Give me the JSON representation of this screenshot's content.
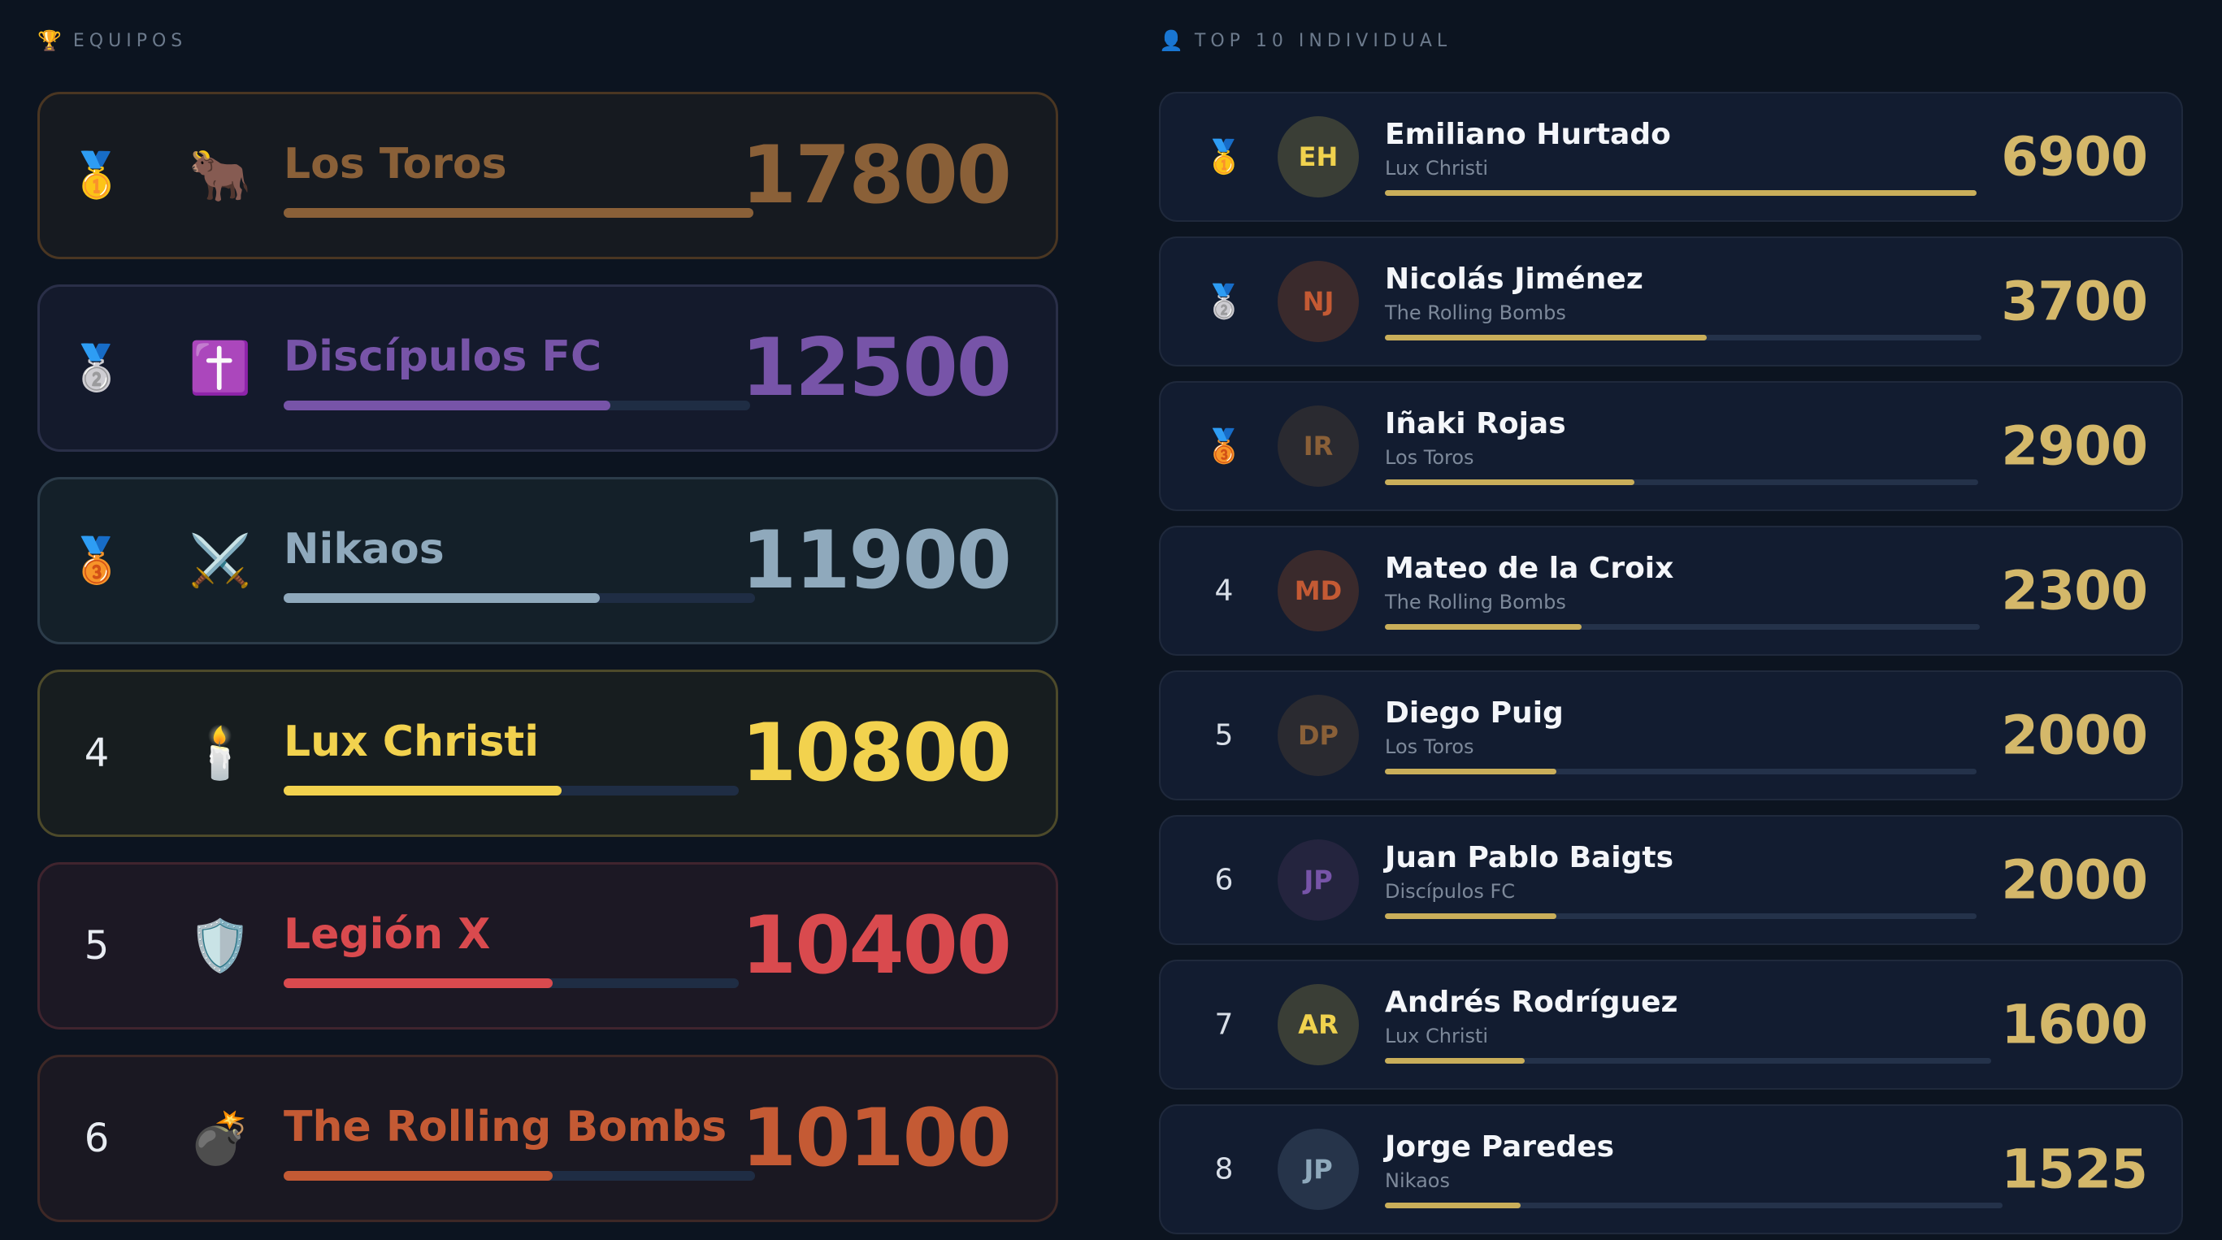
{
  "teams_section": {
    "icon": "trophy-icon",
    "icon_glyph": "🏆",
    "title": "EQUIPOS"
  },
  "top_section": {
    "icon": "person-icon",
    "icon_glyph": "👤",
    "title": "TOP 10 INDIVIDUAL"
  },
  "teams": [
    {
      "rank": "1",
      "medal": "🥇",
      "medal_icon": "gold-medal-icon",
      "emoji": "🐂",
      "emoji_icon": "ox-icon",
      "name": "Los Toros",
      "score": "17800",
      "progress": 1.0,
      "color": "#8a6038",
      "bg": "#161a20",
      "border": "#4a3622"
    },
    {
      "rank": "2",
      "medal": "🥈",
      "medal_icon": "silver-medal-icon",
      "emoji": "✝️",
      "emoji_icon": "cross-icon",
      "name": "Discípulos FC",
      "score": "12500",
      "progress": 0.7,
      "color": "#7754a8",
      "bg": "#141a2c",
      "border": "#2a2f48"
    },
    {
      "rank": "3",
      "medal": "🥉",
      "medal_icon": "bronze-medal-icon",
      "emoji": "⚔️",
      "emoji_icon": "crossed-swords-icon",
      "name": "Nikaos",
      "score": "11900",
      "progress": 0.67,
      "color": "#8fa9bc",
      "bg": "#142029",
      "border": "#2c3c4a"
    },
    {
      "rank": "4",
      "medal": "",
      "medal_icon": "",
      "emoji": "🕯️",
      "emoji_icon": "candle-icon",
      "name": "Lux Christi",
      "score": "10800",
      "progress": 0.61,
      "color": "#f2d24e",
      "bg": "#171d1f",
      "border": "#4d4a2a"
    },
    {
      "rank": "5",
      "medal": "",
      "medal_icon": "",
      "emoji": "🛡️",
      "emoji_icon": "shield-icon",
      "name": "Legión X",
      "score": "10400",
      "progress": 0.59,
      "color": "#d94a4e",
      "bg": "#1c1824",
      "border": "#40242e"
    },
    {
      "rank": "6",
      "medal": "",
      "medal_icon": "",
      "emoji": "💣",
      "emoji_icon": "bomb-icon",
      "name": "The Rolling Bombs",
      "score": "10100",
      "progress": 0.57,
      "color": "#c45a34",
      "bg": "#1a1822",
      "border": "#3e2826"
    }
  ],
  "players": [
    {
      "rank": "1",
      "medal": "🥇",
      "medal_icon": "gold-medal-icon",
      "initials": "EH",
      "name": "Emiliano Hurtado",
      "team": "Lux Christi",
      "score": "6900",
      "progress": 1.0,
      "avatar_bg": "#3a3e36",
      "avatar_fg": "#f0d24e"
    },
    {
      "rank": "2",
      "medal": "🥈",
      "medal_icon": "silver-medal-icon",
      "initials": "NJ",
      "name": "Nicolás Jiménez",
      "team": "The Rolling Bombs",
      "score": "3700",
      "progress": 0.54,
      "avatar_bg": "#3a2a2c",
      "avatar_fg": "#c45a34"
    },
    {
      "rank": "3",
      "medal": "🥉",
      "medal_icon": "bronze-medal-icon",
      "initials": "IR",
      "name": "Iñaki Rojas",
      "team": "Los Toros",
      "score": "2900",
      "progress": 0.42,
      "avatar_bg": "#2a2a30",
      "avatar_fg": "#8a6038"
    },
    {
      "rank": "4",
      "medal": "",
      "medal_icon": "",
      "initials": "MD",
      "name": "Mateo de la Croix",
      "team": "The Rolling Bombs",
      "score": "2300",
      "progress": 0.33,
      "avatar_bg": "#3a2a2c",
      "avatar_fg": "#c45a34"
    },
    {
      "rank": "5",
      "medal": "",
      "medal_icon": "",
      "initials": "DP",
      "name": "Diego Puig",
      "team": "Los Toros",
      "score": "2000",
      "progress": 0.29,
      "avatar_bg": "#2a2a30",
      "avatar_fg": "#8a6038"
    },
    {
      "rank": "6",
      "medal": "",
      "medal_icon": "",
      "initials": "JP",
      "name": "Juan Pablo Baigts",
      "team": "Discípulos FC",
      "score": "2000",
      "progress": 0.29,
      "avatar_bg": "#24243e",
      "avatar_fg": "#7754a8"
    },
    {
      "rank": "7",
      "medal": "",
      "medal_icon": "",
      "initials": "AR",
      "name": "Andrés Rodríguez",
      "team": "Lux Christi",
      "score": "1600",
      "progress": 0.23,
      "avatar_bg": "#3a3e36",
      "avatar_fg": "#f0d24e"
    },
    {
      "rank": "8",
      "medal": "",
      "medal_icon": "",
      "initials": "JP",
      "name": "Jorge Paredes",
      "team": "Nikaos",
      "score": "1525",
      "progress": 0.22,
      "avatar_bg": "#26344a",
      "avatar_fg": "#8fa9bc"
    }
  ]
}
